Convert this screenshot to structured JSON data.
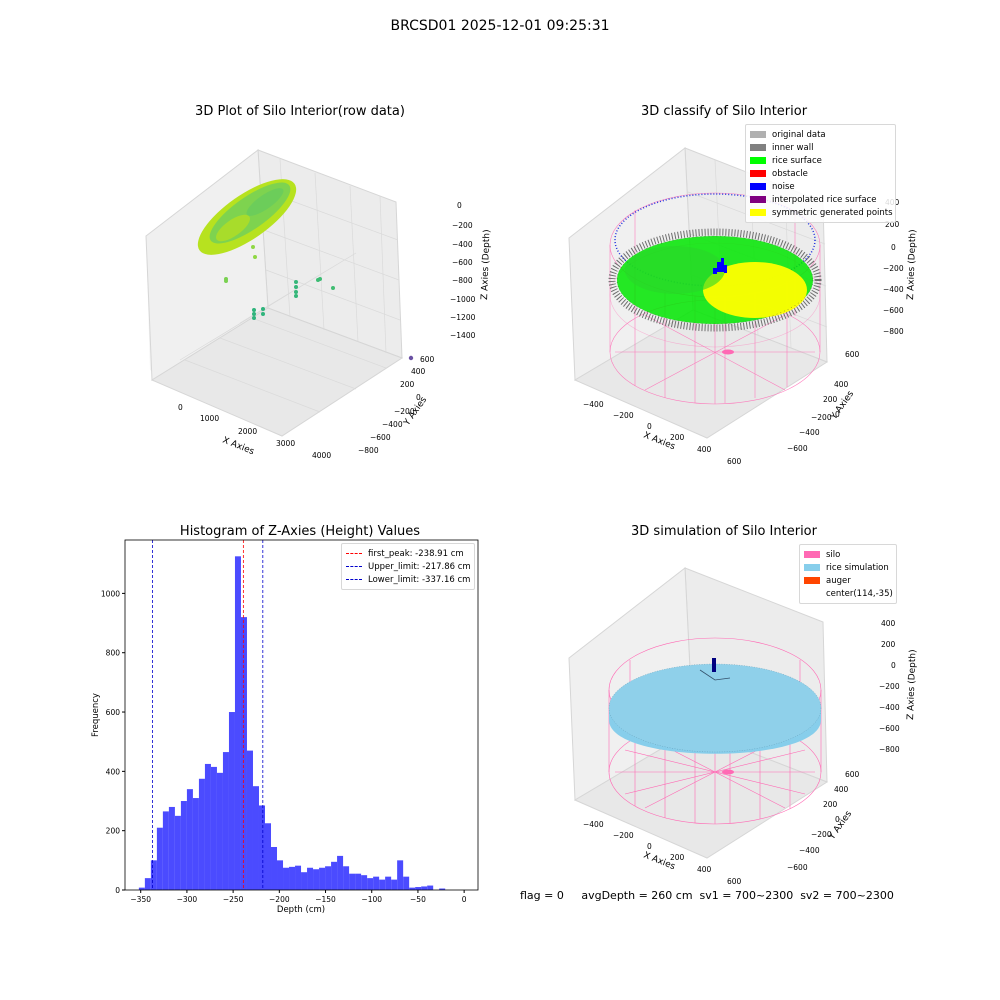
{
  "figure": {
    "suptitle": "BRCSD01 2025-12-01 09:25:31",
    "footer": "flag = 0     avgDepth = 260 cm  sv1 = 700~2300  sv2 = 700~2300"
  },
  "colors": {
    "silo": "#ff69b4",
    "rice": "#87ceeb",
    "auger": "#ff4500",
    "noise": "#0000ff",
    "rice_surface": "#00ff00",
    "inner_wall": "#808080",
    "interpolated": "#800080",
    "symmetric": "#ffff00",
    "original": "#b0b0b0",
    "hist_bar": "#4b4bff",
    "peak": "#ff0000",
    "limit": "#0000cc"
  },
  "chart_data": [
    {
      "type": "scatter",
      "title": "3D Plot of Silo Interior(row data)",
      "xlabel": "X Axies",
      "ylabel": "Y Axies",
      "zlabel": "Z Axies (Depth)",
      "x_ticks": [
        "0",
        "1000",
        "2000",
        "3000",
        "4000"
      ],
      "y_ticks": [
        "600",
        "400",
        "200",
        "0",
        "−200",
        "−400",
        "−600",
        "−800"
      ],
      "z_ticks": [
        "0",
        "−200",
        "−400",
        "−600",
        "−800",
        "−1000",
        "−1200",
        "−1400"
      ]
    },
    {
      "type": "scatter",
      "title": "3D classify of Silo Interior",
      "xlabel": "X Axies",
      "ylabel": "Y Axies",
      "zlabel": "Z Axies (Depth)",
      "x_ticks": [
        "−400",
        "−200",
        "0",
        "200",
        "400",
        "600"
      ],
      "y_ticks": [
        "600",
        "400",
        "200",
        "0",
        "−200",
        "−400",
        "−600"
      ],
      "z_ticks": [
        "400",
        "200",
        "0",
        "−200",
        "−400",
        "−600",
        "−800"
      ],
      "legend": [
        {
          "label": "original data",
          "color": "#b0b0b0"
        },
        {
          "label": "inner wall",
          "color": "#808080"
        },
        {
          "label": "rice surface",
          "color": "#00ff00"
        },
        {
          "label": "obstacle",
          "color": "#ff0000"
        },
        {
          "label": "noise",
          "color": "#0000ff"
        },
        {
          "label": "interpolated rice surface",
          "color": "#800080"
        },
        {
          "label": "symmetric generated points",
          "color": "#ffff00"
        }
      ]
    },
    {
      "type": "bar",
      "title": "Histogram of Z-Axies (Height) Values",
      "xlabel": "Depth (cm)",
      "ylabel": "Frequency",
      "xlim": [
        -367,
        15
      ],
      "ylim": [
        0,
        1180
      ],
      "x_ticks": [
        -350,
        -300,
        -250,
        -200,
        -150,
        -100,
        -50,
        0
      ],
      "y_ticks": [
        0,
        200,
        400,
        600,
        800,
        1000
      ],
      "bin_start": -352,
      "bin_width": 6.5,
      "values": [
        8,
        40,
        100,
        210,
        265,
        280,
        250,
        300,
        340,
        310,
        375,
        425,
        415,
        395,
        465,
        600,
        1125,
        920,
        470,
        350,
        285,
        225,
        145,
        100,
        75,
        78,
        82,
        60,
        75,
        70,
        75,
        80,
        95,
        115,
        80,
        55,
        55,
        50,
        40,
        45,
        35,
        45,
        35,
        100,
        45,
        8,
        10,
        12,
        15,
        0,
        5
      ],
      "vlines": [
        {
          "label": "first_peak: -238.91 cm",
          "x": -238.91,
          "color": "#ff0000"
        },
        {
          "label": "Upper_limit: -217.86 cm",
          "x": -217.86,
          "color": "#0000cc"
        },
        {
          "label": "Lower_limit: -337.16 cm",
          "x": -337.16,
          "color": "#0000cc"
        }
      ]
    },
    {
      "type": "scatter",
      "title": "3D simulation of Silo Interior",
      "xlabel": "X Axies",
      "ylabel": "Y Axies",
      "zlabel": "Z Axies (Depth)",
      "x_ticks": [
        "−400",
        "−200",
        "0",
        "200",
        "400",
        "600"
      ],
      "y_ticks": [
        "600",
        "400",
        "200",
        "0",
        "−200",
        "−400",
        "−600"
      ],
      "z_ticks": [
        "400",
        "200",
        "0",
        "−200",
        "−400",
        "−600",
        "−800"
      ],
      "legend": [
        {
          "label": "silo",
          "color": "#ff69b4"
        },
        {
          "label": "rice simulation",
          "color": "#87ceeb"
        },
        {
          "label": "auger",
          "color": "#ff4500"
        },
        {
          "label": "center(114,-35)",
          "color": ""
        }
      ]
    }
  ]
}
